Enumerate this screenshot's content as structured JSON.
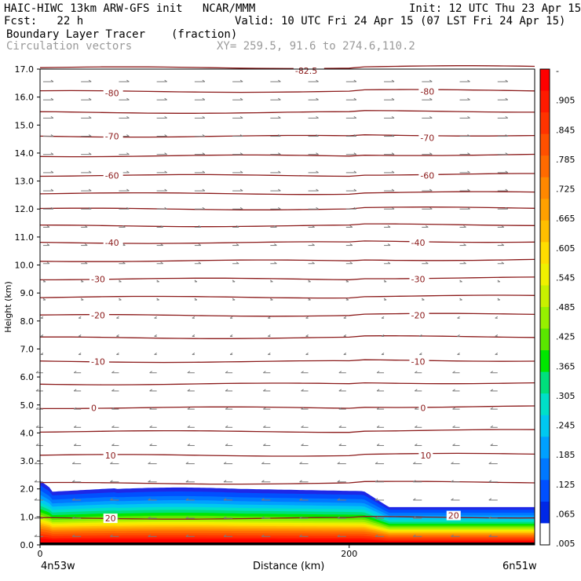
{
  "header": {
    "line1_left": "HAIC-HIWC 13km ARW-GFS init   NCAR/MMM",
    "line1_right": "Init: 12 UTC Thu 23 Apr 15",
    "line2_left": "Fcst:   22 h",
    "line2_right": "Valid: 10 UTC Fri 24 Apr 15 (07 LST Fri 24 Apr 15)",
    "line3_left": "Boundary Layer Tracer",
    "line3_units": "(fraction)",
    "line4_left": "Circulation vectors",
    "line4_xy": "XY= 259.5, 91.6 to 274.6,110.2"
  },
  "chart_data": {
    "type": "heatmap",
    "xlabel": "Distance (km)",
    "ylabel": "Height (km)",
    "xlim": [
      0,
      320
    ],
    "ylim": [
      0,
      17
    ],
    "x_ticks": [
      "0",
      "200"
    ],
    "y_ticks": [
      "0.0",
      "1.0",
      "2.0",
      "3.0",
      "4.0",
      "5.0",
      "6.0",
      "7.0",
      "8.0",
      "9.0",
      "10.0",
      "11.0",
      "12.0",
      "13.0",
      "14.0",
      "15.0",
      "16.0",
      "17.0"
    ],
    "left_endpoint": "4n53w",
    "right_endpoint": "6n51w",
    "colorbar_labels": [
      "-",
      ".905",
      ".845",
      ".785",
      ".725",
      ".665",
      ".605",
      ".545",
      ".485",
      ".425",
      ".365",
      ".305",
      ".245",
      ".185",
      ".125",
      ".065",
      ".005"
    ],
    "colorbar_colors": [
      "#ff0000",
      "#ff1a00",
      "#ff3300",
      "#ff5000",
      "#ff6a00",
      "#ff8800",
      "#ffa000",
      "#ffbe00",
      "#ffdd00",
      "#f0f000",
      "#c8f000",
      "#96f000",
      "#5ae600",
      "#00e600",
      "#00e07c",
      "#00e0c8",
      "#00c8f0",
      "#00a0ff",
      "#0078ff",
      "#0050ff",
      "#0028e6",
      "#ffffff"
    ],
    "contour_labels": [
      {
        "value": "-82.5",
        "x": 165,
        "y": 16.95
      },
      {
        "value": "-80",
        "x": 42,
        "y": 16.15
      },
      {
        "value": "-80",
        "x": 246,
        "y": 16.2
      },
      {
        "value": "-70",
        "x": 42,
        "y": 14.6
      },
      {
        "value": "-70",
        "x": 246,
        "y": 14.55
      },
      {
        "value": "-60",
        "x": 42,
        "y": 13.2
      },
      {
        "value": "-60",
        "x": 246,
        "y": 13.2
      },
      {
        "value": "-40",
        "x": 42,
        "y": 10.8
      },
      {
        "value": "-40",
        "x": 240,
        "y": 10.8
      },
      {
        "value": "-30",
        "x": 33,
        "y": 9.5
      },
      {
        "value": "-30",
        "x": 240,
        "y": 9.5
      },
      {
        "value": "-20",
        "x": 33,
        "y": 8.2
      },
      {
        "value": "-20",
        "x": 240,
        "y": 8.2
      },
      {
        "value": "-10",
        "x": 33,
        "y": 6.55
      },
      {
        "value": "-10",
        "x": 240,
        "y": 6.55
      },
      {
        "value": "0",
        "x": 33,
        "y": 4.9
      },
      {
        "value": "0",
        "x": 246,
        "y": 4.9
      },
      {
        "value": "10",
        "x": 42,
        "y": 3.2
      },
      {
        "value": "10",
        "x": 246,
        "y": 3.2
      },
      {
        "value": "20",
        "x": 42,
        "y": 0.95
      },
      {
        "value": "20",
        "x": 264,
        "y": 1.05
      }
    ],
    "contour_levels_y": [
      17.05,
      16.2,
      15.45,
      14.6,
      13.9,
      13.2,
      12.55,
      12.0,
      11.4,
      10.8,
      10.15,
      9.5,
      8.85,
      8.2,
      7.4,
      6.55,
      5.75,
      4.9,
      4.05,
      3.2,
      2.2,
      0.95
    ]
  }
}
